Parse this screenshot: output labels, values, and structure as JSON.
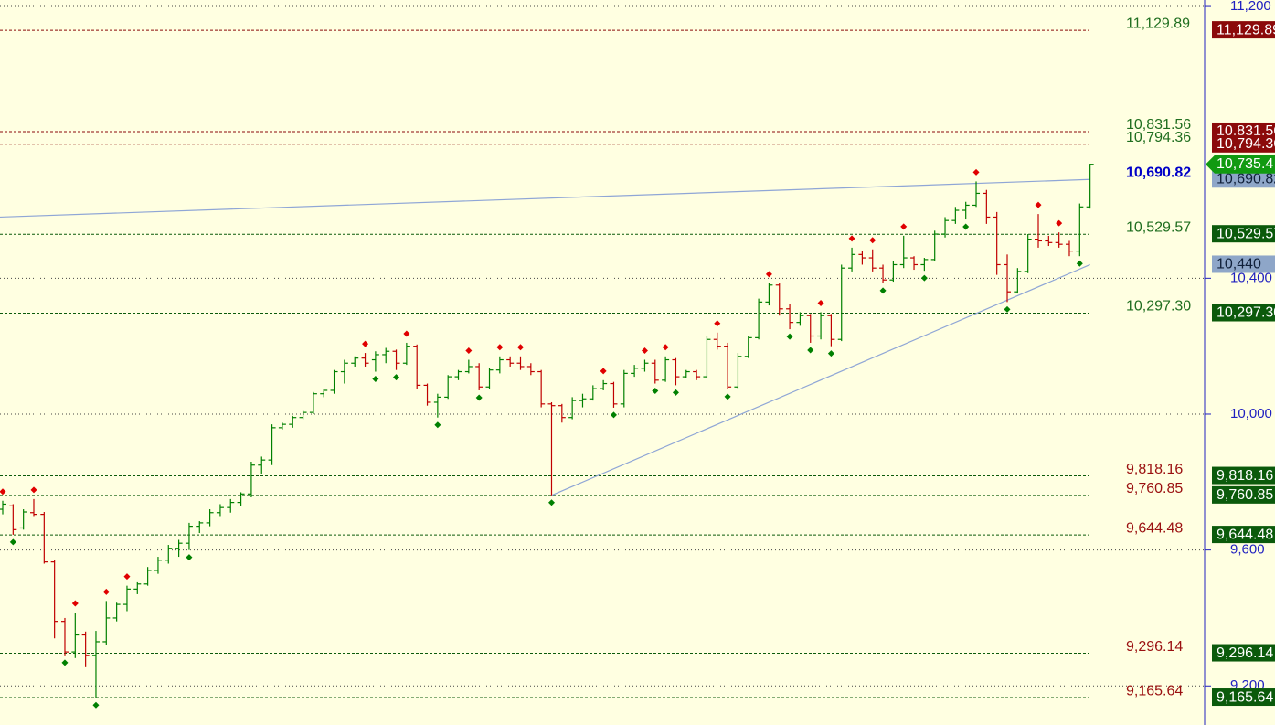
{
  "chart_data": {
    "type": "ohlc",
    "up_color": "#008000",
    "down_color": "#c00000",
    "ylim": [
      9085,
      11219
    ],
    "yticks": [
      {
        "value": 9200,
        "label": "9,200"
      },
      {
        "value": 9600,
        "label": "9,600"
      },
      {
        "value": 10000,
        "label": "10,000"
      },
      {
        "value": 10400,
        "label": "10,400"
      },
      {
        "value": 11200,
        "label": "11,200"
      }
    ],
    "grid": true,
    "bars": [
      [
        9720,
        9745,
        9705,
        9735
      ],
      [
        9730,
        9735,
        9645,
        9660
      ],
      [
        9665,
        9720,
        9660,
        9712
      ],
      [
        9710,
        9750,
        9700,
        9705
      ],
      [
        9705,
        9712,
        9560,
        9565
      ],
      [
        9565,
        9570,
        9340,
        9390
      ],
      [
        9390,
        9400,
        9290,
        9300
      ],
      [
        9300,
        9416,
        9282,
        9350
      ],
      [
        9350,
        9360,
        9255,
        9290
      ],
      [
        9290,
        9362,
        9165,
        9330
      ],
      [
        9330,
        9450,
        9320,
        9400
      ],
      [
        9400,
        9445,
        9390,
        9440
      ],
      [
        9440,
        9495,
        9420,
        9485
      ],
      [
        9485,
        9505,
        9470,
        9500
      ],
      [
        9500,
        9550,
        9495,
        9540
      ],
      [
        9540,
        9580,
        9530,
        9570
      ],
      [
        9570,
        9615,
        9560,
        9605
      ],
      [
        9605,
        9630,
        9580,
        9620
      ],
      [
        9620,
        9680,
        9600,
        9670
      ],
      [
        9670,
        9685,
        9650,
        9680
      ],
      [
        9680,
        9720,
        9670,
        9710
      ],
      [
        9710,
        9735,
        9700,
        9725
      ],
      [
        9725,
        9750,
        9710,
        9740
      ],
      [
        9740,
        9770,
        9730,
        9765
      ],
      [
        9765,
        9860,
        9755,
        9850
      ],
      [
        9850,
        9875,
        9825,
        9865
      ],
      [
        9865,
        9970,
        9850,
        9960
      ],
      [
        9960,
        9975,
        9955,
        9970
      ],
      [
        9970,
        9995,
        9960,
        9990
      ],
      [
        9990,
        10010,
        9985,
        10005
      ],
      [
        10005,
        10065,
        10000,
        10060
      ],
      [
        10060,
        10075,
        10050,
        10070
      ],
      [
        10070,
        10130,
        10060,
        10125
      ],
      [
        10125,
        10160,
        10090,
        10150
      ],
      [
        10150,
        10170,
        10140,
        10165
      ],
      [
        10165,
        10180,
        10140,
        10150
      ],
      [
        10160,
        10185,
        10125,
        10175
      ],
      [
        10175,
        10195,
        10150,
        10185
      ],
      [
        10185,
        10190,
        10130,
        10150
      ],
      [
        10150,
        10210,
        10145,
        10200
      ],
      [
        10200,
        10205,
        10075,
        10085
      ],
      [
        10085,
        10090,
        10025,
        10035
      ],
      [
        10035,
        10060,
        9990,
        10050
      ],
      [
        10050,
        10115,
        10045,
        10110
      ],
      [
        10110,
        10130,
        10100,
        10125
      ],
      [
        10125,
        10160,
        10120,
        10140
      ],
      [
        10140,
        10150,
        10070,
        10080
      ],
      [
        10080,
        10135,
        10075,
        10130
      ],
      [
        10130,
        10170,
        10120,
        10160
      ],
      [
        10160,
        10170,
        10140,
        10150
      ],
      [
        10150,
        10170,
        10130,
        10140
      ],
      [
        10140,
        10150,
        10115,
        10125
      ],
      [
        10125,
        10130,
        10020,
        10030
      ],
      [
        10030,
        10035,
        9761,
        10025
      ],
      [
        10025,
        10030,
        9975,
        9990
      ],
      [
        9990,
        10050,
        9985,
        10040
      ],
      [
        10040,
        10060,
        10020,
        10045
      ],
      [
        10045,
        10085,
        10040,
        10075
      ],
      [
        10075,
        10100,
        10070,
        10090
      ],
      [
        10090,
        10095,
        10019,
        10030
      ],
      [
        10030,
        10130,
        10020,
        10120
      ],
      [
        10120,
        10145,
        10110,
        10135
      ],
      [
        10135,
        10160,
        10125,
        10150
      ],
      [
        10150,
        10160,
        10090,
        10100
      ],
      [
        10100,
        10170,
        10095,
        10160
      ],
      [
        10160,
        10165,
        10085,
        10110
      ],
      [
        10110,
        10130,
        10105,
        10125
      ],
      [
        10125,
        10130,
        10100,
        10110
      ],
      [
        10110,
        10230,
        10105,
        10220
      ],
      [
        10220,
        10240,
        10190,
        10200
      ],
      [
        10200,
        10210,
        10073,
        10080
      ],
      [
        10080,
        10180,
        10075,
        10170
      ],
      [
        10170,
        10230,
        10165,
        10225
      ],
      [
        10225,
        10340,
        10220,
        10330
      ],
      [
        10330,
        10385,
        10320,
        10380
      ],
      [
        10380,
        10385,
        10290,
        10310
      ],
      [
        10310,
        10325,
        10250,
        10270
      ],
      [
        10270,
        10300,
        10260,
        10290
      ],
      [
        10290,
        10295,
        10210,
        10230
      ],
      [
        10230,
        10300,
        10220,
        10290
      ],
      [
        10290,
        10295,
        10200,
        10220
      ],
      [
        10220,
        10440,
        10215,
        10430
      ],
      [
        10430,
        10490,
        10420,
        10470
      ],
      [
        10470,
        10480,
        10440,
        10460
      ],
      [
        10460,
        10485,
        10420,
        10430
      ],
      [
        10430,
        10440,
        10385,
        10395
      ],
      [
        10395,
        10450,
        10390,
        10440
      ],
      [
        10440,
        10525,
        10430,
        10460
      ],
      [
        10460,
        10465,
        10425,
        10440
      ],
      [
        10440,
        10460,
        10422,
        10455
      ],
      [
        10455,
        10540,
        10450,
        10530
      ],
      [
        10530,
        10580,
        10520,
        10570
      ],
      [
        10570,
        10610,
        10560,
        10600
      ],
      [
        10600,
        10625,
        10573,
        10615
      ],
      [
        10615,
        10685,
        10610,
        10650
      ],
      [
        10650,
        10660,
        10560,
        10580
      ],
      [
        10580,
        10595,
        10410,
        10440
      ],
      [
        10440,
        10470,
        10330,
        10360
      ],
      [
        10360,
        10430,
        10355,
        10420
      ],
      [
        10420,
        10530,
        10415,
        10515
      ],
      [
        10515,
        10589,
        10490,
        10510
      ],
      [
        10510,
        10525,
        10495,
        10505
      ],
      [
        10505,
        10535,
        10490,
        10500
      ],
      [
        10500,
        10510,
        10465,
        10480
      ],
      [
        10480,
        10620,
        10465,
        10610
      ],
      [
        10610,
        10737,
        10605,
        10735.4
      ]
    ],
    "pivot_highs": [
      0,
      3,
      7,
      10,
      12,
      35,
      39,
      45,
      48,
      50,
      58,
      62,
      64,
      69,
      74,
      79,
      82,
      84,
      87,
      94,
      100,
      102
    ],
    "pivot_lows": [
      1,
      6,
      9,
      18,
      36,
      38,
      42,
      46,
      53,
      59,
      63,
      65,
      70,
      76,
      78,
      80,
      85,
      89,
      93,
      97,
      104
    ],
    "pivot_high_color": "#e00000",
    "pivot_low_color": "#008000",
    "levels": [
      {
        "value": 11129.89,
        "label": "11,129.89",
        "text_color": "#1f6e1f",
        "badge_color": "#8b0a0a"
      },
      {
        "value": 10831.56,
        "label": "10,831.56",
        "text_color": "#1f6e1f",
        "badge_color": "#8b0a0a"
      },
      {
        "value": 10794.36,
        "label": "10,794.36",
        "text_color": "#1f6e1f",
        "badge_color": "#8b0a0a"
      },
      {
        "value": 10529.57,
        "label": "10,529.57",
        "text_color": "#1f6e1f",
        "badge_color": "#0b5a0b"
      },
      {
        "value": 10297.3,
        "label": "10,297.30",
        "text_color": "#1f6e1f",
        "badge_color": "#0b5a0b"
      },
      {
        "value": 9818.16,
        "label": "9,818.16",
        "text_color": "#9a1010",
        "badge_color": "#0b5a0b"
      },
      {
        "value": 9760.85,
        "label": "9,760.85",
        "text_color": "#9a1010",
        "badge_color": "#0b5a0b"
      },
      {
        "value": 9644.48,
        "label": "9,644.48",
        "text_color": "#9a1010",
        "badge_color": "#0b5a0b"
      },
      {
        "value": 9296.14,
        "label": "9,296.14",
        "text_color": "#9a1010",
        "badge_color": "#0b5a0b"
      },
      {
        "value": 9165.64,
        "label": "9,165.64",
        "text_color": "#9a1010",
        "badge_color": "#0b5a0b"
      }
    ],
    "trendlines": [
      {
        "color": "#8fa6d6",
        "start": [
          0,
          10580
        ],
        "end": [
          105,
          10690.82
        ],
        "end_label": "10,690.82",
        "label_color": "#0000c8",
        "badge_color": "#8ea6c8"
      },
      {
        "color": "#8fa6d6",
        "start": [
          53,
          9760.85
        ],
        "end": [
          105,
          10440
        ],
        "end_label": "10,440",
        "badge_color": "#8ea6c8"
      }
    ],
    "last_price_label": "10,735.4",
    "last_price_color": "#119a11"
  }
}
